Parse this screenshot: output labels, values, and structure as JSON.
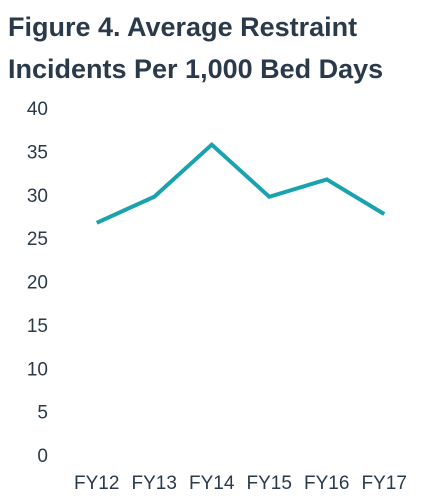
{
  "chart_data": {
    "type": "line",
    "title": "Figure 4. Average Restraint Incidents Per 1,000 Bed Days",
    "categories": [
      "FY12",
      "FY13",
      "FY14",
      "FY15",
      "FY16",
      "FY17"
    ],
    "values": [
      27,
      30,
      36,
      30,
      32,
      28
    ],
    "color": "#1aa3ae",
    "ylim": [
      0,
      40
    ],
    "yticks": [
      0,
      5,
      10,
      15,
      20,
      25,
      30,
      35,
      40
    ],
    "grid": false
  }
}
